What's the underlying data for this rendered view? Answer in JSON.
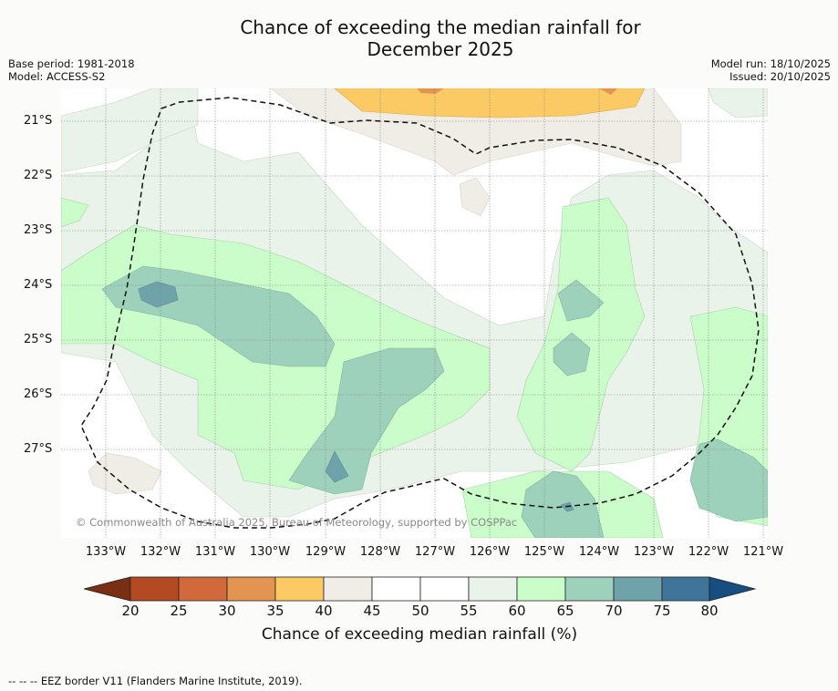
{
  "title_line1": "Chance of exceeding the median rainfall for",
  "title_line2": "December 2025",
  "base_period": "Base period: 1981-2018",
  "model": "Model: ACCESS-S2",
  "model_run": "Model run: 18/10/2025",
  "issued": "Issued: 20/10/2025",
  "copyright": "© Commonwealth of Australia 2025, Bureau of Meteorology, supported by COSPPac",
  "lat_labels": [
    "21°S",
    "22°S",
    "23°S",
    "24°S",
    "25°S",
    "26°S",
    "27°S"
  ],
  "lon_labels": [
    "133°W",
    "132°W",
    "131°W",
    "130°W",
    "129°W",
    "128°W",
    "127°W",
    "126°W",
    "125°W",
    "124°W",
    "123°W",
    "122°W",
    "121°W"
  ],
  "colorbar": {
    "title": "Chance of exceeding median rainfall (%)",
    "ticks": [
      "20",
      "25",
      "30",
      "35",
      "40",
      "45",
      "50",
      "55",
      "60",
      "65",
      "70",
      "75",
      "80"
    ],
    "colors": {
      "lt20": "#7a2e14",
      "20-25": "#b34a22",
      "25-30": "#d2693a",
      "30-35": "#e29450",
      "35-40": "#fcca65",
      "40-45": "#f0ede6",
      "45-50": "#ffffff",
      "50-55": "#ffffff",
      "55-60": "#eaf3e9",
      "60-65": "#cbfdcb",
      "65-70": "#9dd1bb",
      "70-75": "#6fa3aa",
      "75-80": "#3f759a",
      "gt80": "#164e82"
    }
  },
  "footnote": "-- -- -- EEZ border V11 (Flanders Marine Institute, 2019)."
}
